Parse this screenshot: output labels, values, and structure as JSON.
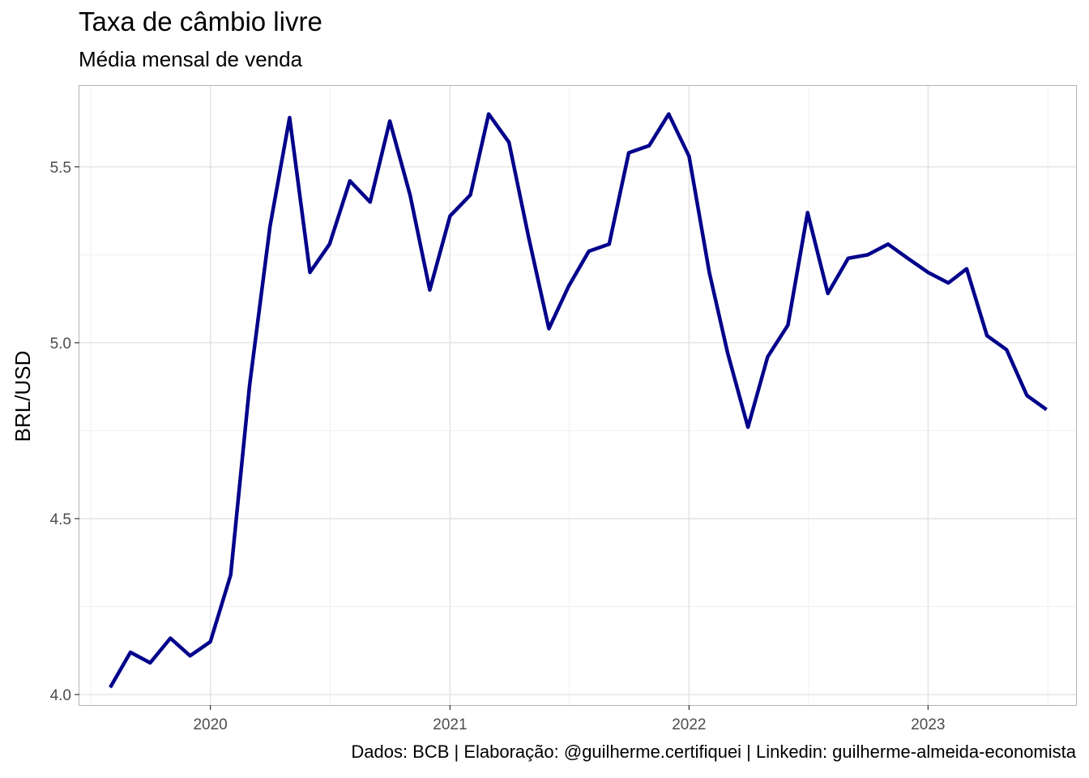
{
  "chart_data": {
    "type": "line",
    "title": "Taxa de câmbio livre",
    "subtitle": "Média mensal de venda",
    "ylabel": "BRL/USD",
    "xlabel": "",
    "caption": "Dados: BCB | Elaboração: @guilherme.certifiquei | Linkedin: guilherme-almeida-economista",
    "xlim": [
      "2019-06-15",
      "2023-08-15"
    ],
    "ylim": [
      3.97,
      5.73
    ],
    "x_ticks": [
      {
        "value": "2020-01-01",
        "label": "2020"
      },
      {
        "value": "2021-01-01",
        "label": "2021"
      },
      {
        "value": "2022-01-01",
        "label": "2022"
      },
      {
        "value": "2023-01-01",
        "label": "2023"
      }
    ],
    "y_ticks": [
      {
        "value": 4.0,
        "label": "4.0"
      },
      {
        "value": 4.5,
        "label": "4.5"
      },
      {
        "value": 5.0,
        "label": "5.0"
      },
      {
        "value": 5.5,
        "label": "5.5"
      }
    ],
    "grid": true,
    "line_color": "#00008b",
    "series": [
      {
        "x": [
          "2019-08-01",
          "2019-09-01",
          "2019-10-01",
          "2019-11-01",
          "2019-12-01",
          "2020-01-01",
          "2020-02-01",
          "2020-03-01",
          "2020-04-01",
          "2020-05-01",
          "2020-06-01",
          "2020-07-01",
          "2020-08-01",
          "2020-09-01",
          "2020-10-01",
          "2020-11-01",
          "2020-12-01",
          "2021-01-01",
          "2021-02-01",
          "2021-03-01",
          "2021-04-01",
          "2021-05-01",
          "2021-06-01",
          "2021-07-01",
          "2021-08-01",
          "2021-09-01",
          "2021-10-01",
          "2021-11-01",
          "2021-12-01",
          "2022-01-01",
          "2022-02-01",
          "2022-03-01",
          "2022-04-01",
          "2022-05-01",
          "2022-06-01",
          "2022-07-01",
          "2022-08-01",
          "2022-09-01",
          "2022-10-01",
          "2022-11-01",
          "2022-12-01",
          "2023-01-01",
          "2023-02-01",
          "2023-03-01",
          "2023-04-01",
          "2023-05-01",
          "2023-06-01",
          "2023-07-01"
        ],
        "values": [
          4.02,
          4.12,
          4.09,
          4.16,
          4.11,
          4.15,
          4.34,
          4.88,
          5.33,
          5.64,
          5.2,
          5.28,
          5.46,
          5.4,
          5.63,
          5.42,
          5.15,
          5.36,
          5.42,
          5.65,
          5.57,
          5.3,
          5.04,
          5.16,
          5.26,
          5.28,
          5.54,
          5.56,
          5.65,
          5.53,
          5.2,
          4.97,
          4.76,
          4.96,
          5.05,
          5.37,
          5.14,
          5.24,
          5.25,
          5.28,
          5.24,
          5.2,
          5.17,
          5.21,
          5.02,
          4.98,
          4.85,
          4.81
        ]
      }
    ]
  }
}
